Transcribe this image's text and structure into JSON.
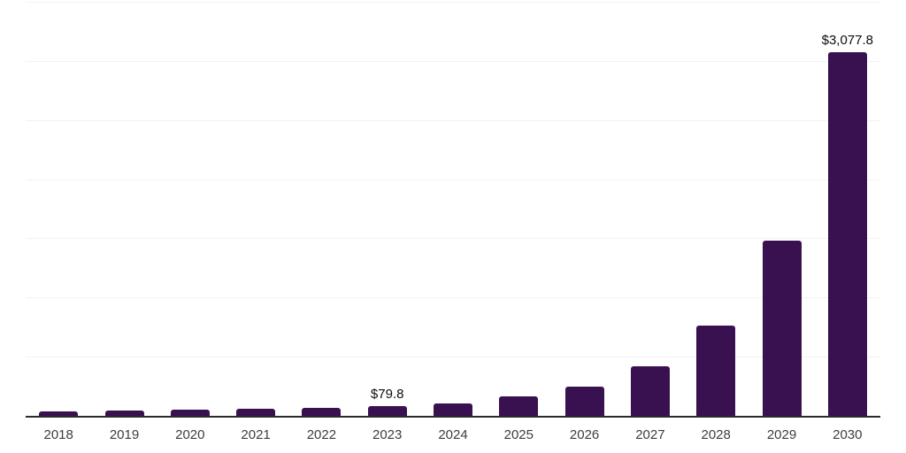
{
  "chart_data": {
    "type": "bar",
    "title": "",
    "xlabel": "",
    "ylabel": "",
    "ylim": [
      0,
      3500
    ],
    "grid_step": 500,
    "grid": true,
    "legend": false,
    "bar_color": "#3A1150",
    "categories": [
      "2018",
      "2019",
      "2020",
      "2021",
      "2022",
      "2023",
      "2024",
      "2025",
      "2026",
      "2027",
      "2028",
      "2029",
      "2030"
    ],
    "points": [
      {
        "year": "2018",
        "value": 35,
        "label": null
      },
      {
        "year": "2019",
        "value": 46,
        "label": null
      },
      {
        "year": "2020",
        "value": 52,
        "label": null
      },
      {
        "year": "2021",
        "value": 61,
        "label": null
      },
      {
        "year": "2022",
        "value": 70,
        "label": null
      },
      {
        "year": "2023",
        "value": 79.8,
        "label": "$79.8"
      },
      {
        "year": "2024",
        "value": 108,
        "label": null
      },
      {
        "year": "2025",
        "value": 165,
        "label": null
      },
      {
        "year": "2026",
        "value": 245,
        "label": null
      },
      {
        "year": "2027",
        "value": 420,
        "label": null
      },
      {
        "year": "2028",
        "value": 760,
        "label": null
      },
      {
        "year": "2029",
        "value": 1480,
        "label": null
      },
      {
        "year": "2030",
        "value": 3077.8,
        "label": "$3,077.8"
      }
    ]
  },
  "colors": {
    "background": "#ffffff",
    "bar_color": "#3A1150",
    "gridline": "#f2f2f2",
    "axis_line": "#2a2a2a",
    "year_label": "#3d3d3d",
    "value_label": "#0d0d0d"
  }
}
